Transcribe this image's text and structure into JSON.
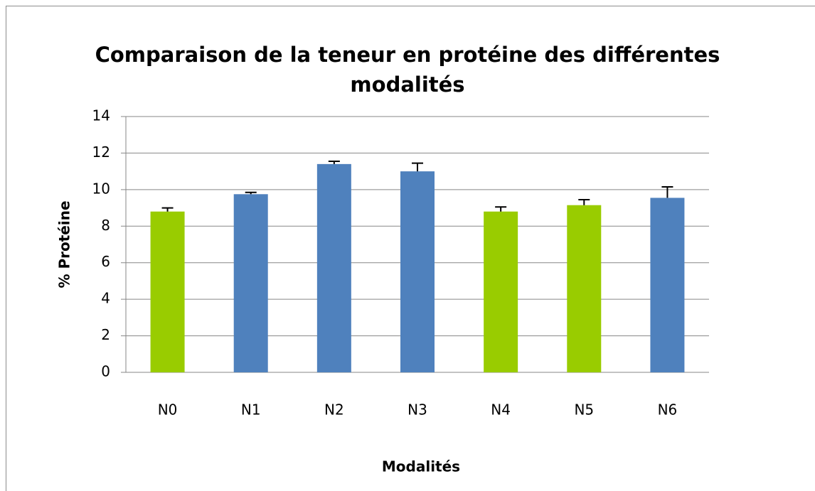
{
  "chart_data": {
    "type": "bar",
    "title": "Comparaison de la teneur en protéine des différentes modalités",
    "x_label": "Modalités",
    "y_label": "% Protéine",
    "categories": [
      "N0",
      "N1",
      "N2",
      "N3",
      "N4",
      "N5",
      "N6"
    ],
    "values": [
      8.8,
      9.75,
      11.4,
      11.0,
      8.8,
      9.15,
      9.55
    ],
    "errors": [
      0.2,
      0.1,
      0.15,
      0.45,
      0.25,
      0.3,
      0.6
    ],
    "colors": [
      "#99cc00",
      "#4f81bd",
      "#4f81bd",
      "#4f81bd",
      "#99cc00",
      "#99cc00",
      "#4f81bd"
    ],
    "ylim": [
      0,
      14
    ],
    "yticks": [
      0,
      2,
      4,
      6,
      8,
      10,
      12,
      14
    ],
    "grid": true
  }
}
